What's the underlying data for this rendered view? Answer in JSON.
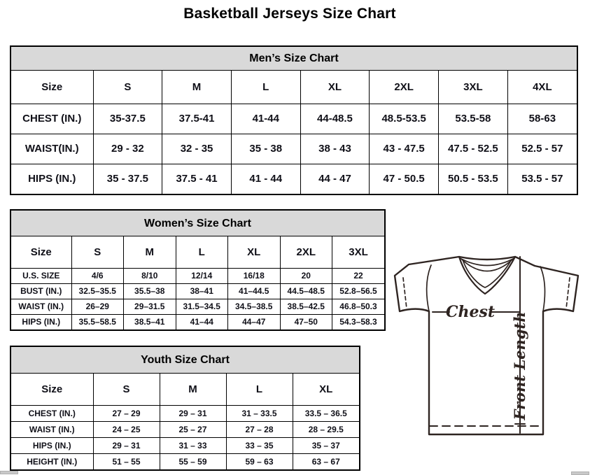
{
  "page_title": "Basketball Jerseys Size Chart",
  "colors": {
    "table_header_bg": "#d9d9d9",
    "table_border": "#000000",
    "text_ink": "#101018",
    "diagram_stroke": "#2e2421",
    "scrollbar_gray": "#c9c9c9"
  },
  "tables": {
    "men": {
      "title": "Men’s Size Chart",
      "columns": [
        "Size",
        "S",
        "M",
        "L",
        "XL",
        "2XL",
        "3XL",
        "4XL"
      ],
      "rows": [
        [
          "CHEST (IN.)",
          "35-37.5",
          "37.5-41",
          "41-44",
          "44-48.5",
          "48.5-53.5",
          "53.5-58",
          "58-63"
        ],
        [
          "WAIST(IN.)",
          "29 - 32",
          "32 - 35",
          "35 - 38",
          "38 - 43",
          "43 - 47.5",
          "47.5 - 52.5",
          "52.5 - 57"
        ],
        [
          "HIPS (IN.)",
          "35 - 37.5",
          "37.5 - 41",
          "41 - 44",
          "44 - 47",
          "47 - 50.5",
          "50.5 - 53.5",
          "53.5 - 57"
        ]
      ]
    },
    "women": {
      "title": "Women’s Size Chart",
      "columns": [
        "Size",
        "S",
        "M",
        "L",
        "XL",
        "2XL",
        "3XL"
      ],
      "rows": [
        [
          "U.S. SIZE",
          "4/6",
          "8/10",
          "12/14",
          "16/18",
          "20",
          "22"
        ],
        [
          "BUST (IN.)",
          "32.5–35.5",
          "35.5–38",
          "38–41",
          "41–44.5",
          "44.5–48.5",
          "52.8–56.5"
        ],
        [
          "WAIST (IN.)",
          "26–29",
          "29–31.5",
          "31.5–34.5",
          "34.5–38.5",
          "38.5–42.5",
          "46.8–50.3"
        ],
        [
          "HIPS (IN.)",
          "35.5–58.5",
          "38.5–41",
          "41–44",
          "44–47",
          "47–50",
          "54.3–58.3"
        ]
      ]
    },
    "youth": {
      "title": "Youth Size Chart",
      "columns": [
        "Size",
        "S",
        "M",
        "L",
        "XL"
      ],
      "rows": [
        [
          "CHEST (IN.)",
          "27 – 29",
          "29 – 31",
          "31 – 33.5",
          "33.5 – 36.5"
        ],
        [
          "WAIST (IN.)",
          "24 – 25",
          "25 – 27",
          "27 – 28",
          "28 – 29.5"
        ],
        [
          "HIPS (IN.)",
          "29 – 31",
          "31 – 33",
          "33 – 35",
          "35 – 37"
        ],
        [
          "HEIGHT (IN.)",
          "51 – 55",
          "55 – 59",
          "59 – 63",
          "63 – 67"
        ]
      ]
    }
  },
  "diagram": {
    "chest_label": "Chest",
    "front_length_label": "Front Length"
  }
}
